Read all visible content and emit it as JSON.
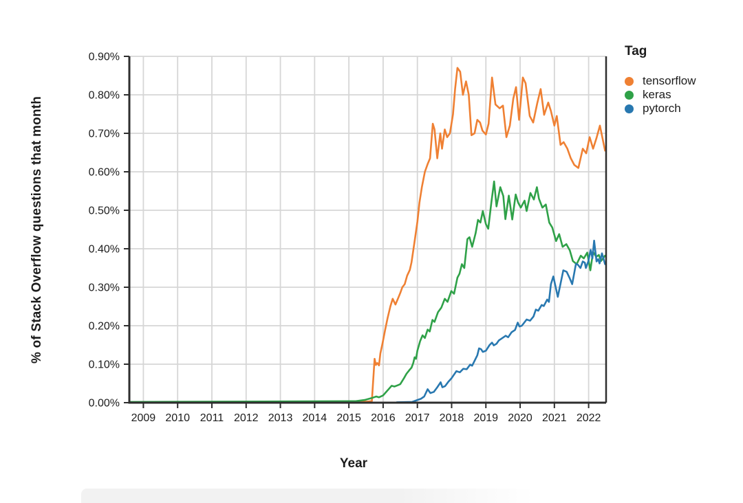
{
  "page": {
    "background": "#ffffff"
  },
  "colors": {
    "axis": "#2e2e2e",
    "grid": "#d6d6d6",
    "text": "#1c1c1c",
    "bottom_band": "#f2f2f2"
  },
  "chart_data": {
    "type": "line",
    "xlabel": "Year",
    "ylabel": "% of Stack Overflow questions that month",
    "legend_title": "Tag",
    "legend_position": "right",
    "grid": true,
    "xlim": [
      2008.59,
      2022.51
    ],
    "ylim": [
      0,
      0.9
    ],
    "x_tick_values": [
      2009,
      2010,
      2011,
      2012,
      2013,
      2014,
      2015,
      2016,
      2017,
      2018,
      2019,
      2020,
      2021,
      2022
    ],
    "x_tick_labels": [
      "2009",
      "2010",
      "2011",
      "2012",
      "2013",
      "2014",
      "2015",
      "2016",
      "2017",
      "2018",
      "2019",
      "2020",
      "2021",
      "2022"
    ],
    "y_tick_values": [
      0,
      0.1,
      0.2,
      0.3,
      0.4,
      0.5,
      0.6,
      0.7,
      0.8,
      0.9
    ],
    "y_tick_labels": [
      "0.00%",
      "0.10%",
      "0.20%",
      "0.30%",
      "0.40%",
      "0.50%",
      "0.60%",
      "0.70%",
      "0.80%",
      "0.90%"
    ],
    "y_unit": "% of Stack Overflow questions that month",
    "series": [
      {
        "name": "tensorflow",
        "color": "#ef8033",
        "points": [
          [
            2008.7,
            0
          ],
          [
            2015.55,
            0.003
          ],
          [
            2015.67,
            0.004
          ],
          [
            2015.75,
            0.114
          ],
          [
            2015.79,
            0.098
          ],
          [
            2015.83,
            0.103
          ],
          [
            2015.88,
            0.097
          ],
          [
            2015.92,
            0.128
          ],
          [
            2015.98,
            0.153
          ],
          [
            2016.06,
            0.19
          ],
          [
            2016.13,
            0.22
          ],
          [
            2016.21,
            0.25
          ],
          [
            2016.28,
            0.27
          ],
          [
            2016.36,
            0.255
          ],
          [
            2016.44,
            0.272
          ],
          [
            2016.5,
            0.285
          ],
          [
            2016.56,
            0.3
          ],
          [
            2016.63,
            0.308
          ],
          [
            2016.7,
            0.33
          ],
          [
            2016.78,
            0.345
          ],
          [
            2016.83,
            0.365
          ],
          [
            2016.92,
            0.42
          ],
          [
            2017.0,
            0.47
          ],
          [
            2017.06,
            0.52
          ],
          [
            2017.13,
            0.56
          ],
          [
            2017.22,
            0.6
          ],
          [
            2017.3,
            0.62
          ],
          [
            2017.37,
            0.635
          ],
          [
            2017.45,
            0.725
          ],
          [
            2017.5,
            0.71
          ],
          [
            2017.58,
            0.635
          ],
          [
            2017.67,
            0.7
          ],
          [
            2017.72,
            0.66
          ],
          [
            2017.8,
            0.71
          ],
          [
            2017.87,
            0.69
          ],
          [
            2017.95,
            0.7
          ],
          [
            2018.04,
            0.75
          ],
          [
            2018.1,
            0.815
          ],
          [
            2018.17,
            0.87
          ],
          [
            2018.25,
            0.86
          ],
          [
            2018.33,
            0.8
          ],
          [
            2018.42,
            0.835
          ],
          [
            2018.5,
            0.8
          ],
          [
            2018.58,
            0.695
          ],
          [
            2018.67,
            0.7
          ],
          [
            2018.75,
            0.735
          ],
          [
            2018.83,
            0.728
          ],
          [
            2018.9,
            0.707
          ],
          [
            2019.0,
            0.697
          ],
          [
            2019.08,
            0.725
          ],
          [
            2019.18,
            0.845
          ],
          [
            2019.28,
            0.775
          ],
          [
            2019.4,
            0.765
          ],
          [
            2019.5,
            0.772
          ],
          [
            2019.6,
            0.69
          ],
          [
            2019.7,
            0.72
          ],
          [
            2019.8,
            0.79
          ],
          [
            2019.88,
            0.82
          ],
          [
            2019.97,
            0.735
          ],
          [
            2020.08,
            0.845
          ],
          [
            2020.16,
            0.83
          ],
          [
            2020.28,
            0.745
          ],
          [
            2020.38,
            0.728
          ],
          [
            2020.5,
            0.778
          ],
          [
            2020.6,
            0.815
          ],
          [
            2020.7,
            0.748
          ],
          [
            2020.82,
            0.78
          ],
          [
            2020.9,
            0.758
          ],
          [
            2021.0,
            0.72
          ],
          [
            2021.07,
            0.745
          ],
          [
            2021.18,
            0.67
          ],
          [
            2021.27,
            0.677
          ],
          [
            2021.38,
            0.66
          ],
          [
            2021.48,
            0.635
          ],
          [
            2021.58,
            0.618
          ],
          [
            2021.7,
            0.61
          ],
          [
            2021.83,
            0.66
          ],
          [
            2021.93,
            0.648
          ],
          [
            2022.03,
            0.69
          ],
          [
            2022.13,
            0.66
          ],
          [
            2022.23,
            0.688
          ],
          [
            2022.33,
            0.72
          ],
          [
            2022.48,
            0.655
          ]
        ]
      },
      {
        "name": "keras",
        "color": "#2fa148",
        "points": [
          [
            2008.59,
            0.002
          ],
          [
            2015.2,
            0.004
          ],
          [
            2015.46,
            0.007
          ],
          [
            2015.7,
            0.013
          ],
          [
            2015.8,
            0.016
          ],
          [
            2015.88,
            0.014
          ],
          [
            2016.0,
            0.019
          ],
          [
            2016.08,
            0.027
          ],
          [
            2016.17,
            0.036
          ],
          [
            2016.25,
            0.044
          ],
          [
            2016.33,
            0.042
          ],
          [
            2016.42,
            0.045
          ],
          [
            2016.5,
            0.048
          ],
          [
            2016.61,
            0.064
          ],
          [
            2016.68,
            0.075
          ],
          [
            2016.77,
            0.085
          ],
          [
            2016.83,
            0.091
          ],
          [
            2016.88,
            0.103
          ],
          [
            2016.92,
            0.118
          ],
          [
            2016.96,
            0.114
          ],
          [
            2017.0,
            0.135
          ],
          [
            2017.08,
            0.16
          ],
          [
            2017.15,
            0.175
          ],
          [
            2017.22,
            0.168
          ],
          [
            2017.3,
            0.19
          ],
          [
            2017.36,
            0.185
          ],
          [
            2017.44,
            0.215
          ],
          [
            2017.5,
            0.21
          ],
          [
            2017.6,
            0.235
          ],
          [
            2017.7,
            0.247
          ],
          [
            2017.8,
            0.27
          ],
          [
            2017.88,
            0.262
          ],
          [
            2017.99,
            0.29
          ],
          [
            2018.07,
            0.283
          ],
          [
            2018.17,
            0.325
          ],
          [
            2018.23,
            0.335
          ],
          [
            2018.3,
            0.36
          ],
          [
            2018.37,
            0.35
          ],
          [
            2018.46,
            0.425
          ],
          [
            2018.52,
            0.43
          ],
          [
            2018.6,
            0.405
          ],
          [
            2018.7,
            0.44
          ],
          [
            2018.77,
            0.475
          ],
          [
            2018.84,
            0.468
          ],
          [
            2018.91,
            0.498
          ],
          [
            2019.0,
            0.464
          ],
          [
            2019.07,
            0.452
          ],
          [
            2019.16,
            0.52
          ],
          [
            2019.24,
            0.575
          ],
          [
            2019.31,
            0.51
          ],
          [
            2019.42,
            0.56
          ],
          [
            2019.51,
            0.537
          ],
          [
            2019.57,
            0.477
          ],
          [
            2019.67,
            0.538
          ],
          [
            2019.77,
            0.476
          ],
          [
            2019.87,
            0.541
          ],
          [
            2019.94,
            0.52
          ],
          [
            2020.02,
            0.507
          ],
          [
            2020.13,
            0.525
          ],
          [
            2020.19,
            0.498
          ],
          [
            2020.3,
            0.545
          ],
          [
            2020.4,
            0.528
          ],
          [
            2020.49,
            0.56
          ],
          [
            2020.55,
            0.53
          ],
          [
            2020.65,
            0.507
          ],
          [
            2020.75,
            0.515
          ],
          [
            2020.85,
            0.468
          ],
          [
            2020.94,
            0.455
          ],
          [
            2021.05,
            0.42
          ],
          [
            2021.14,
            0.438
          ],
          [
            2021.24,
            0.405
          ],
          [
            2021.35,
            0.412
          ],
          [
            2021.45,
            0.396
          ],
          [
            2021.54,
            0.368
          ],
          [
            2021.65,
            0.36
          ],
          [
            2021.77,
            0.382
          ],
          [
            2021.86,
            0.375
          ],
          [
            2021.96,
            0.39
          ],
          [
            2022.05,
            0.344
          ],
          [
            2022.13,
            0.392
          ],
          [
            2022.22,
            0.379
          ],
          [
            2022.3,
            0.384
          ],
          [
            2022.36,
            0.368
          ],
          [
            2022.48,
            0.382
          ]
        ]
      },
      {
        "name": "pytorch",
        "color": "#2878b0",
        "points": [
          [
            2016.4,
            0.001
          ],
          [
            2016.85,
            0.002
          ],
          [
            2017.0,
            0.007
          ],
          [
            2017.1,
            0.01
          ],
          [
            2017.2,
            0.016
          ],
          [
            2017.3,
            0.035
          ],
          [
            2017.38,
            0.025
          ],
          [
            2017.48,
            0.028
          ],
          [
            2017.58,
            0.04
          ],
          [
            2017.68,
            0.053
          ],
          [
            2017.73,
            0.04
          ],
          [
            2017.81,
            0.043
          ],
          [
            2017.91,
            0.055
          ],
          [
            2018.0,
            0.064
          ],
          [
            2018.14,
            0.082
          ],
          [
            2018.24,
            0.079
          ],
          [
            2018.34,
            0.088
          ],
          [
            2018.44,
            0.087
          ],
          [
            2018.54,
            0.099
          ],
          [
            2018.6,
            0.096
          ],
          [
            2018.75,
            0.123
          ],
          [
            2018.8,
            0.141
          ],
          [
            2018.86,
            0.139
          ],
          [
            2018.91,
            0.132
          ],
          [
            2019.0,
            0.135
          ],
          [
            2019.11,
            0.15
          ],
          [
            2019.18,
            0.156
          ],
          [
            2019.23,
            0.149
          ],
          [
            2019.31,
            0.153
          ],
          [
            2019.38,
            0.162
          ],
          [
            2019.48,
            0.168
          ],
          [
            2019.58,
            0.174
          ],
          [
            2019.65,
            0.17
          ],
          [
            2019.75,
            0.183
          ],
          [
            2019.85,
            0.189
          ],
          [
            2019.93,
            0.208
          ],
          [
            2019.98,
            0.198
          ],
          [
            2020.05,
            0.2
          ],
          [
            2020.19,
            0.216
          ],
          [
            2020.29,
            0.213
          ],
          [
            2020.39,
            0.224
          ],
          [
            2020.46,
            0.242
          ],
          [
            2020.53,
            0.239
          ],
          [
            2020.63,
            0.254
          ],
          [
            2020.69,
            0.251
          ],
          [
            2020.79,
            0.268
          ],
          [
            2020.84,
            0.262
          ],
          [
            2020.9,
            0.308
          ],
          [
            2020.97,
            0.328
          ],
          [
            2021.1,
            0.275
          ],
          [
            2021.26,
            0.344
          ],
          [
            2021.36,
            0.34
          ],
          [
            2021.45,
            0.323
          ],
          [
            2021.52,
            0.308
          ],
          [
            2021.63,
            0.361
          ],
          [
            2021.69,
            0.358
          ],
          [
            2021.76,
            0.35
          ],
          [
            2021.83,
            0.367
          ],
          [
            2021.89,
            0.364
          ],
          [
            2021.92,
            0.35
          ],
          [
            2021.99,
            0.367
          ],
          [
            2022.06,
            0.397
          ],
          [
            2022.11,
            0.375
          ],
          [
            2022.16,
            0.421
          ],
          [
            2022.23,
            0.367
          ],
          [
            2022.28,
            0.373
          ],
          [
            2022.32,
            0.362
          ],
          [
            2022.39,
            0.388
          ],
          [
            2022.48,
            0.36
          ]
        ]
      }
    ]
  }
}
